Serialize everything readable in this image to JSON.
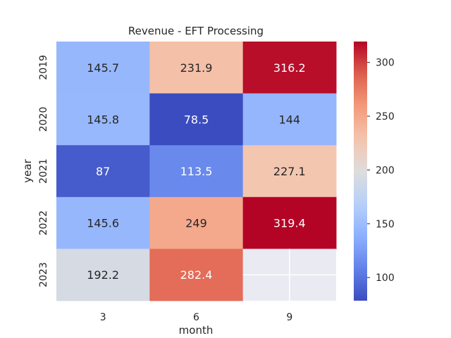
{
  "chart_data": {
    "type": "heatmap",
    "title": "Revenue - EFT Processing",
    "xlabel": "month",
    "ylabel": "year",
    "x_categories": [
      "3",
      "6",
      "9"
    ],
    "y_categories": [
      "2019",
      "2020",
      "2021",
      "2022",
      "2023"
    ],
    "values": [
      [
        145.7,
        231.9,
        316.2
      ],
      [
        145.8,
        78.5,
        144
      ],
      [
        87,
        113.5,
        227.1
      ],
      [
        145.6,
        249,
        319.4
      ],
      [
        192.2,
        282.4,
        null
      ]
    ],
    "labels": [
      [
        "145.7",
        "231.9",
        "316.2"
      ],
      [
        "145.8",
        "78.5",
        "144"
      ],
      [
        "87",
        "113.5",
        "227.1"
      ],
      [
        "145.6",
        "249",
        "319.4"
      ],
      [
        "192.2",
        "282.4",
        ""
      ]
    ],
    "colormap": "coolwarm",
    "vmin": 78.5,
    "vmax": 319.4,
    "colorbar_ticks": [
      100,
      150,
      200,
      250,
      300
    ],
    "colorbar_tick_labels": [
      "100",
      "150",
      "200",
      "250",
      "300"
    ],
    "missing_color": "#eaeaf2"
  }
}
